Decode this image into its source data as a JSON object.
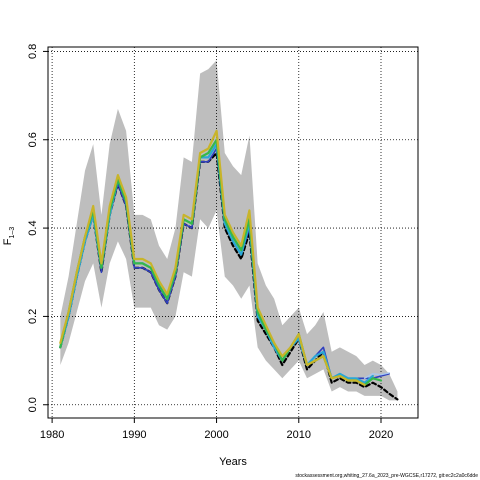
{
  "chart_data": {
    "type": "line",
    "xlabel": "Years",
    "ylabel_main": "F",
    "ylabel_sub": "1–3",
    "xlim": [
      1979.5,
      2024.5
    ],
    "ylim": [
      -0.03,
      0.81
    ],
    "xticks": [
      1980,
      1990,
      2000,
      2010,
      2020
    ],
    "yticks": [
      0.0,
      0.2,
      0.4,
      0.6,
      0.8
    ],
    "xtick_labels": [
      "1980",
      "1990",
      "2000",
      "2010",
      "2020"
    ],
    "ytick_labels": [
      "0.0",
      "0.2",
      "0.4",
      "0.6",
      "0.8"
    ],
    "grid": true,
    "footer": "stockassessment.org,whiting_27.6a_2023_pre-WGCSE,r17272, git:ec2c2a0c6dde",
    "confidence_band": {
      "color": "#bebebe",
      "x": [
        1981,
        1982,
        1983,
        1984,
        1985,
        1986,
        1987,
        1988,
        1989,
        1990,
        1991,
        1992,
        1993,
        1994,
        1995,
        1996,
        1997,
        1998,
        1999,
        2000,
        2001,
        2002,
        2003,
        2004,
        2005,
        2006,
        2007,
        2008,
        2009,
        2010,
        2011,
        2012,
        2013,
        2014,
        2015,
        2016,
        2017,
        2018,
        2019,
        2020,
        2021,
        2022
      ],
      "upper": [
        0.2,
        0.29,
        0.41,
        0.53,
        0.59,
        0.43,
        0.59,
        0.67,
        0.62,
        0.43,
        0.43,
        0.42,
        0.36,
        0.33,
        0.4,
        0.56,
        0.55,
        0.75,
        0.76,
        0.78,
        0.57,
        0.54,
        0.52,
        0.61,
        0.32,
        0.27,
        0.24,
        0.18,
        0.2,
        0.22,
        0.16,
        0.18,
        0.21,
        0.12,
        0.13,
        0.12,
        0.11,
        0.09,
        0.1,
        0.09,
        0.07,
        0.03
      ],
      "lower": [
        0.09,
        0.14,
        0.21,
        0.28,
        0.32,
        0.22,
        0.32,
        0.37,
        0.33,
        0.22,
        0.22,
        0.22,
        0.18,
        0.17,
        0.2,
        0.3,
        0.29,
        0.42,
        0.4,
        0.44,
        0.29,
        0.27,
        0.24,
        0.27,
        0.13,
        0.1,
        0.08,
        0.06,
        0.08,
        0.1,
        0.06,
        0.07,
        0.08,
        0.03,
        0.04,
        0.03,
        0.03,
        0.02,
        0.02,
        0.02,
        0.01,
        0.01
      ]
    },
    "series": [
      {
        "color": "#000000",
        "dash": "4,3",
        "width": 2.2,
        "x": [
          1981,
          1982,
          1983,
          1984,
          1985,
          1986,
          1987,
          1988,
          1989,
          1990,
          1991,
          1992,
          1993,
          1994,
          1995,
          1996,
          1997,
          1998,
          1999,
          2000,
          2001,
          2002,
          2003,
          2004,
          2005,
          2006,
          2007,
          2008,
          2009,
          2010,
          2011,
          2012,
          2013,
          2014,
          2015,
          2016,
          2017,
          2018,
          2019,
          2020,
          2021,
          2022
        ],
        "y": [
          0.13,
          0.2,
          0.29,
          0.37,
          0.43,
          0.3,
          0.43,
          0.5,
          0.45,
          0.31,
          0.31,
          0.3,
          0.26,
          0.23,
          0.29,
          0.41,
          0.4,
          0.55,
          0.55,
          0.57,
          0.4,
          0.36,
          0.33,
          0.39,
          0.19,
          0.16,
          0.13,
          0.09,
          0.12,
          0.15,
          0.08,
          0.1,
          0.12,
          0.05,
          0.06,
          0.05,
          0.05,
          0.04,
          0.05,
          0.04,
          0.025,
          0.012
        ]
      },
      {
        "color": "#2f3fbf",
        "dash": "",
        "width": 1.6,
        "x": [
          1981,
          1982,
          1983,
          1984,
          1985,
          1986,
          1987,
          1988,
          1989,
          1990,
          1991,
          1992,
          1993,
          1994,
          1995,
          1996,
          1997,
          1998,
          1999,
          2000,
          2001,
          2002,
          2003,
          2004,
          2005,
          2006,
          2007,
          2008,
          2009,
          2010,
          2011,
          2012,
          2013,
          2014,
          2015,
          2016,
          2017,
          2018,
          2019,
          2020,
          2021
        ],
        "y": [
          0.13,
          0.2,
          0.29,
          0.37,
          0.43,
          0.3,
          0.43,
          0.5,
          0.45,
          0.31,
          0.31,
          0.3,
          0.26,
          0.23,
          0.29,
          0.41,
          0.4,
          0.55,
          0.55,
          0.58,
          0.41,
          0.37,
          0.34,
          0.4,
          0.2,
          0.17,
          0.14,
          0.1,
          0.13,
          0.15,
          0.09,
          0.11,
          0.13,
          0.06,
          0.07,
          0.06,
          0.06,
          0.06,
          0.06,
          0.065,
          0.07
        ]
      },
      {
        "color": "#2aa7d6",
        "dash": "",
        "width": 2.2,
        "x": [
          1981,
          1982,
          1983,
          1984,
          1985,
          1986,
          1987,
          1988,
          1989,
          1990,
          1991,
          1992,
          1993,
          1994,
          1995,
          1996,
          1997,
          1998,
          1999,
          2000,
          2001,
          2002,
          2003,
          2004,
          2005,
          2006,
          2007,
          2008,
          2009,
          2010,
          2011,
          2012,
          2013,
          2014,
          2015,
          2016,
          2017,
          2018,
          2019
        ],
        "y": [
          0.13,
          0.2,
          0.29,
          0.37,
          0.43,
          0.31,
          0.43,
          0.51,
          0.46,
          0.32,
          0.32,
          0.31,
          0.27,
          0.24,
          0.3,
          0.42,
          0.41,
          0.56,
          0.56,
          0.59,
          0.41,
          0.37,
          0.34,
          0.41,
          0.2,
          0.17,
          0.13,
          0.1,
          0.13,
          0.15,
          0.09,
          0.11,
          0.12,
          0.06,
          0.07,
          0.06,
          0.06,
          0.05,
          0.065
        ]
      },
      {
        "color": "#35b84b",
        "dash": "",
        "width": 2.2,
        "x": [
          1981,
          1982,
          1983,
          1984,
          1985,
          1986,
          1987,
          1988,
          1989,
          1990,
          1991,
          1992,
          1993,
          1994,
          1995,
          1996,
          1997,
          1998,
          1999,
          2000,
          2001,
          2002,
          2003,
          2004,
          2005,
          2006,
          2007,
          2008,
          2009,
          2010,
          2011,
          2012,
          2013,
          2014,
          2015,
          2016,
          2017,
          2018,
          2019,
          2020
        ],
        "y": [
          0.13,
          0.21,
          0.3,
          0.38,
          0.44,
          0.31,
          0.44,
          0.51,
          0.46,
          0.32,
          0.32,
          0.31,
          0.27,
          0.24,
          0.3,
          0.42,
          0.41,
          0.56,
          0.57,
          0.6,
          0.42,
          0.38,
          0.35,
          0.42,
          0.21,
          0.17,
          0.14,
          0.1,
          0.13,
          0.16,
          0.09,
          0.1,
          0.11,
          0.06,
          0.065,
          0.055,
          0.055,
          0.045,
          0.06,
          0.055
        ]
      },
      {
        "color": "#c8b42a",
        "dash": "",
        "width": 2.2,
        "x": [
          1981,
          1982,
          1983,
          1984,
          1985,
          1986,
          1987,
          1988,
          1989,
          1990,
          1991,
          1992,
          1993,
          1994,
          1995,
          1996,
          1997,
          1998,
          1999,
          2000,
          2001,
          2002,
          2003,
          2004,
          2005,
          2006,
          2007,
          2008,
          2009,
          2010,
          2011,
          2012,
          2013,
          2014,
          2015,
          2016,
          2017,
          2018
        ],
        "y": [
          0.14,
          0.21,
          0.3,
          0.38,
          0.45,
          0.32,
          0.45,
          0.52,
          0.47,
          0.33,
          0.33,
          0.32,
          0.28,
          0.25,
          0.31,
          0.43,
          0.42,
          0.57,
          0.58,
          0.62,
          0.43,
          0.39,
          0.36,
          0.44,
          0.22,
          0.18,
          0.14,
          0.11,
          0.13,
          0.16,
          0.09,
          0.1,
          0.11,
          0.06,
          0.065,
          0.055,
          0.055,
          0.045
        ]
      },
      {
        "color": "#a7c7f0",
        "dash": "",
        "width": 1.4,
        "x": [
          2018,
          2019,
          2020,
          2021
        ],
        "y": [
          0.06,
          0.07,
          0.068,
          0.072
        ]
      }
    ]
  }
}
